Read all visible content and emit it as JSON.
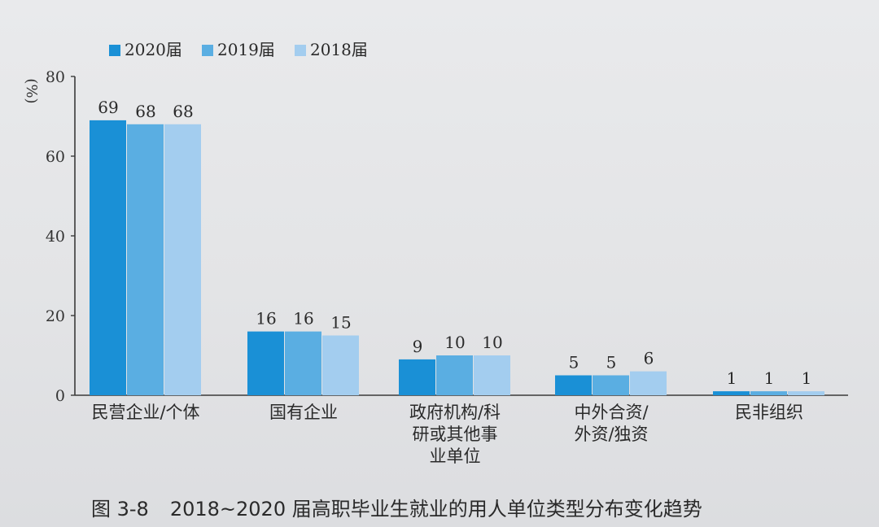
{
  "figure": {
    "number": "图 3-8",
    "caption": "2018~2020 届高职毕业生就业的用人单位类型分布变化趋势"
  },
  "colors": {
    "2020届": "#1a90d6",
    "2019届": "#5aaee2",
    "2018届": "#a3cdef"
  },
  "chart_data": {
    "type": "bar",
    "y_unit": "%",
    "ylim": [
      0,
      80
    ],
    "yticks": [
      0,
      20,
      40,
      60,
      80
    ],
    "legend_position": "top-left",
    "grid": false,
    "categories": [
      [
        "民营企业/个体"
      ],
      [
        "国有企业"
      ],
      [
        "政府机构/科",
        "研或其他事",
        "业单位"
      ],
      [
        "中外合资/",
        "外资/独资"
      ],
      [
        "民非组织"
      ]
    ],
    "series": [
      {
        "name": "2020届",
        "values": [
          69,
          16,
          9,
          5,
          1
        ]
      },
      {
        "name": "2019届",
        "values": [
          68,
          16,
          10,
          5,
          1
        ]
      },
      {
        "name": "2018届",
        "values": [
          68,
          15,
          10,
          6,
          1
        ]
      }
    ]
  }
}
